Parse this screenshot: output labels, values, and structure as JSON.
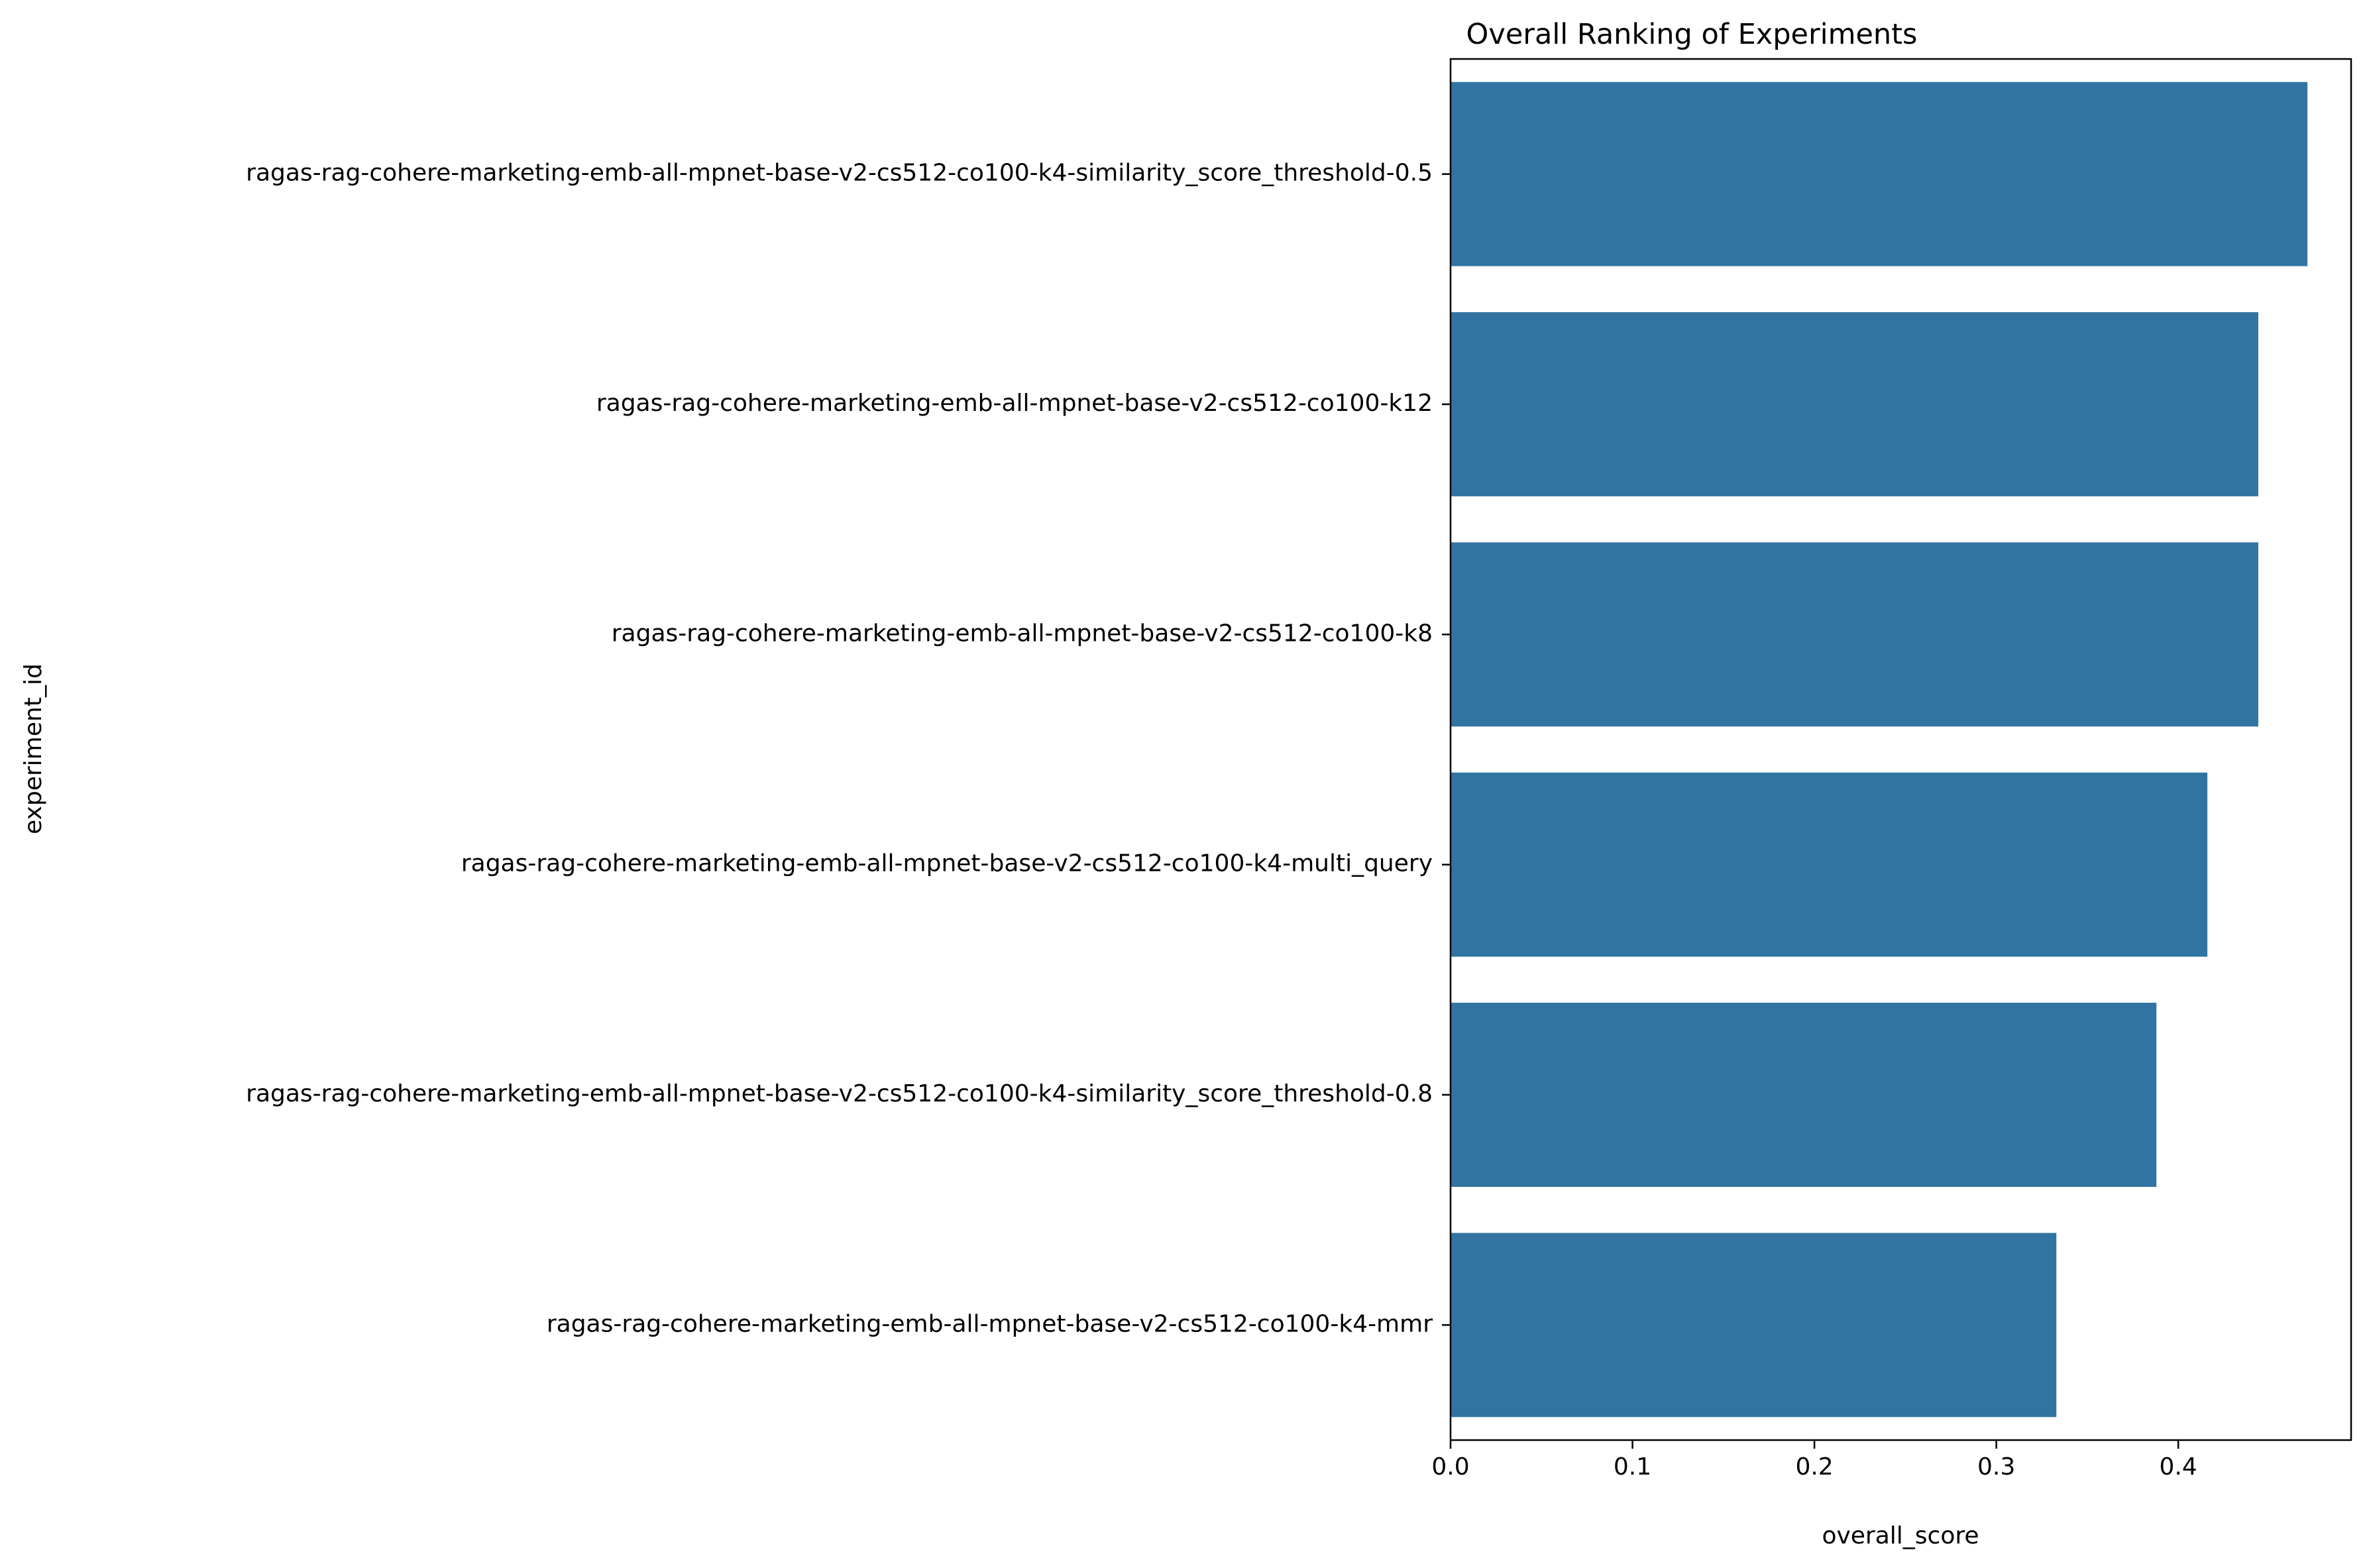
{
  "chart_data": {
    "type": "bar",
    "orientation": "horizontal",
    "title": "Overall Ranking of Experiments",
    "xlabel": "overall_score",
    "ylabel": "experiment_id",
    "xlim": [
      0,
      0.495
    ],
    "xticks": [
      0.0,
      0.1,
      0.2,
      0.3,
      0.4
    ],
    "xtick_labels": [
      "0.0",
      "0.1",
      "0.2",
      "0.3",
      "0.4"
    ],
    "grid": false,
    "bar_color": "#3274a1",
    "categories": [
      "ragas-rag-cohere-marketing-emb-all-mpnet-base-v2-cs512-co100-k4-similarity_score_threshold-0.5",
      "ragas-rag-cohere-marketing-emb-all-mpnet-base-v2-cs512-co100-k12",
      "ragas-rag-cohere-marketing-emb-all-mpnet-base-v2-cs512-co100-k8",
      "ragas-rag-cohere-marketing-emb-all-mpnet-base-v2-cs512-co100-k4-multi_query",
      "ragas-rag-cohere-marketing-emb-all-mpnet-base-v2-cs512-co100-k4-similarity_score_threshold-0.8",
      "ragas-rag-cohere-marketing-emb-all-mpnet-base-v2-cs512-co100-k4-mmr"
    ],
    "values": [
      0.471,
      0.444,
      0.444,
      0.416,
      0.388,
      0.333
    ]
  }
}
